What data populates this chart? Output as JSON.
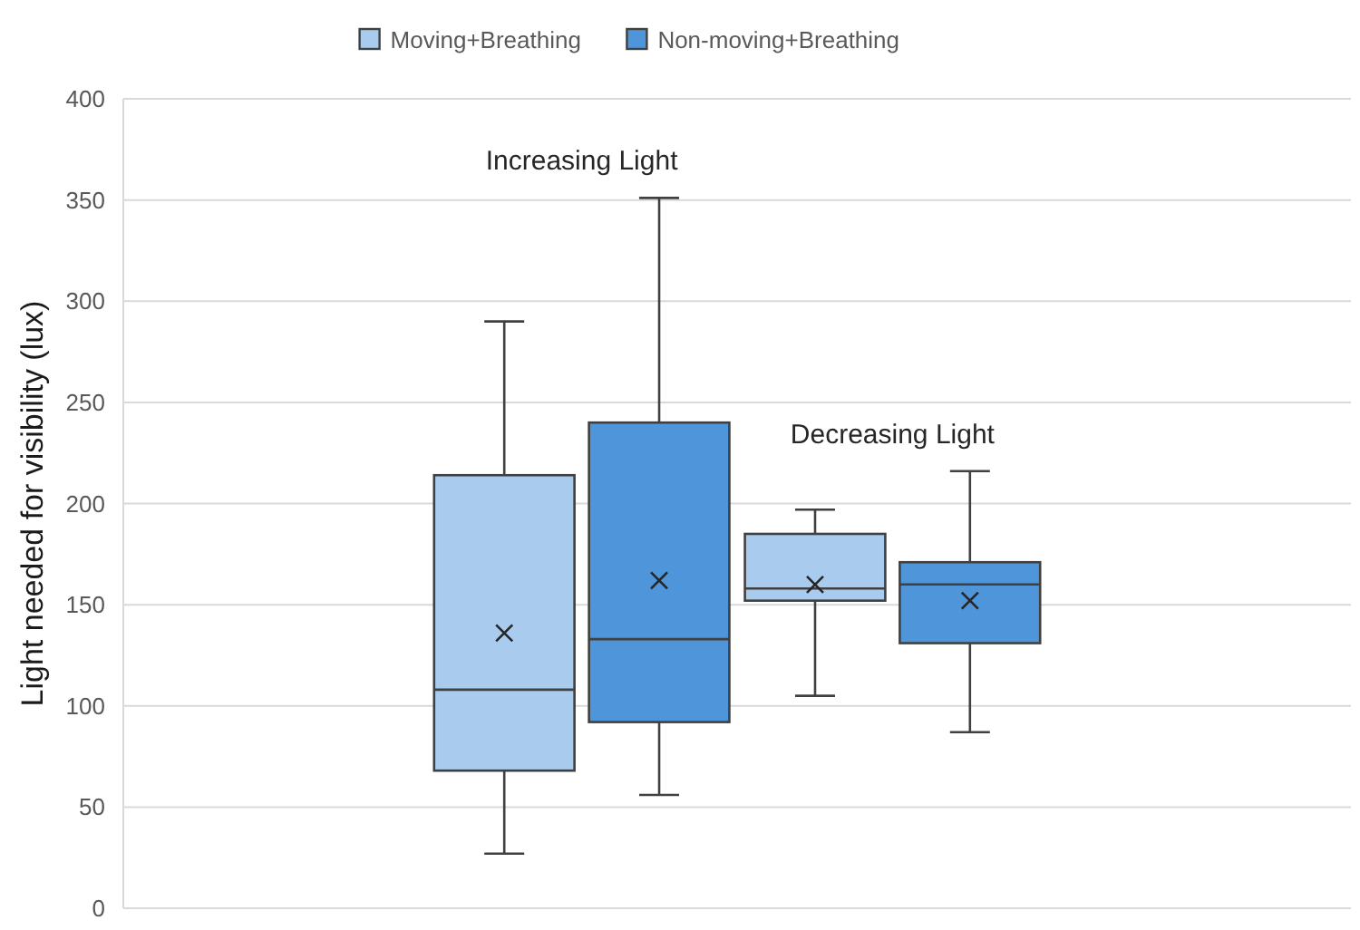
{
  "chart_data": {
    "type": "box",
    "categories": [
      "Increasing Light",
      "Decreasing Light"
    ],
    "ylabel": "Light needed for visibility (lux)",
    "ylim": [
      0,
      400
    ],
    "yticks": [
      0,
      50,
      100,
      150,
      200,
      250,
      300,
      350,
      400
    ],
    "grid": "y",
    "legend": "top",
    "series": [
      {
        "name": "Moving+Breathing",
        "color": "#a9cbee",
        "boxes": [
          {
            "low": 27,
            "q1": 68,
            "median": 108,
            "q3": 214,
            "high": 290,
            "mean": 136
          },
          {
            "low": 105,
            "q1": 152,
            "median": 158,
            "q3": 185,
            "high": 197,
            "mean": 160
          }
        ]
      },
      {
        "name": "Non-moving+Breathing",
        "color": "#4f95da",
        "boxes": [
          {
            "low": 56,
            "q1": 92,
            "median": 133,
            "q3": 240,
            "high": 351,
            "mean": 162
          },
          {
            "low": 87,
            "q1": 131,
            "median": 160,
            "q3": 171,
            "high": 216,
            "mean": 152
          }
        ]
      }
    ]
  }
}
